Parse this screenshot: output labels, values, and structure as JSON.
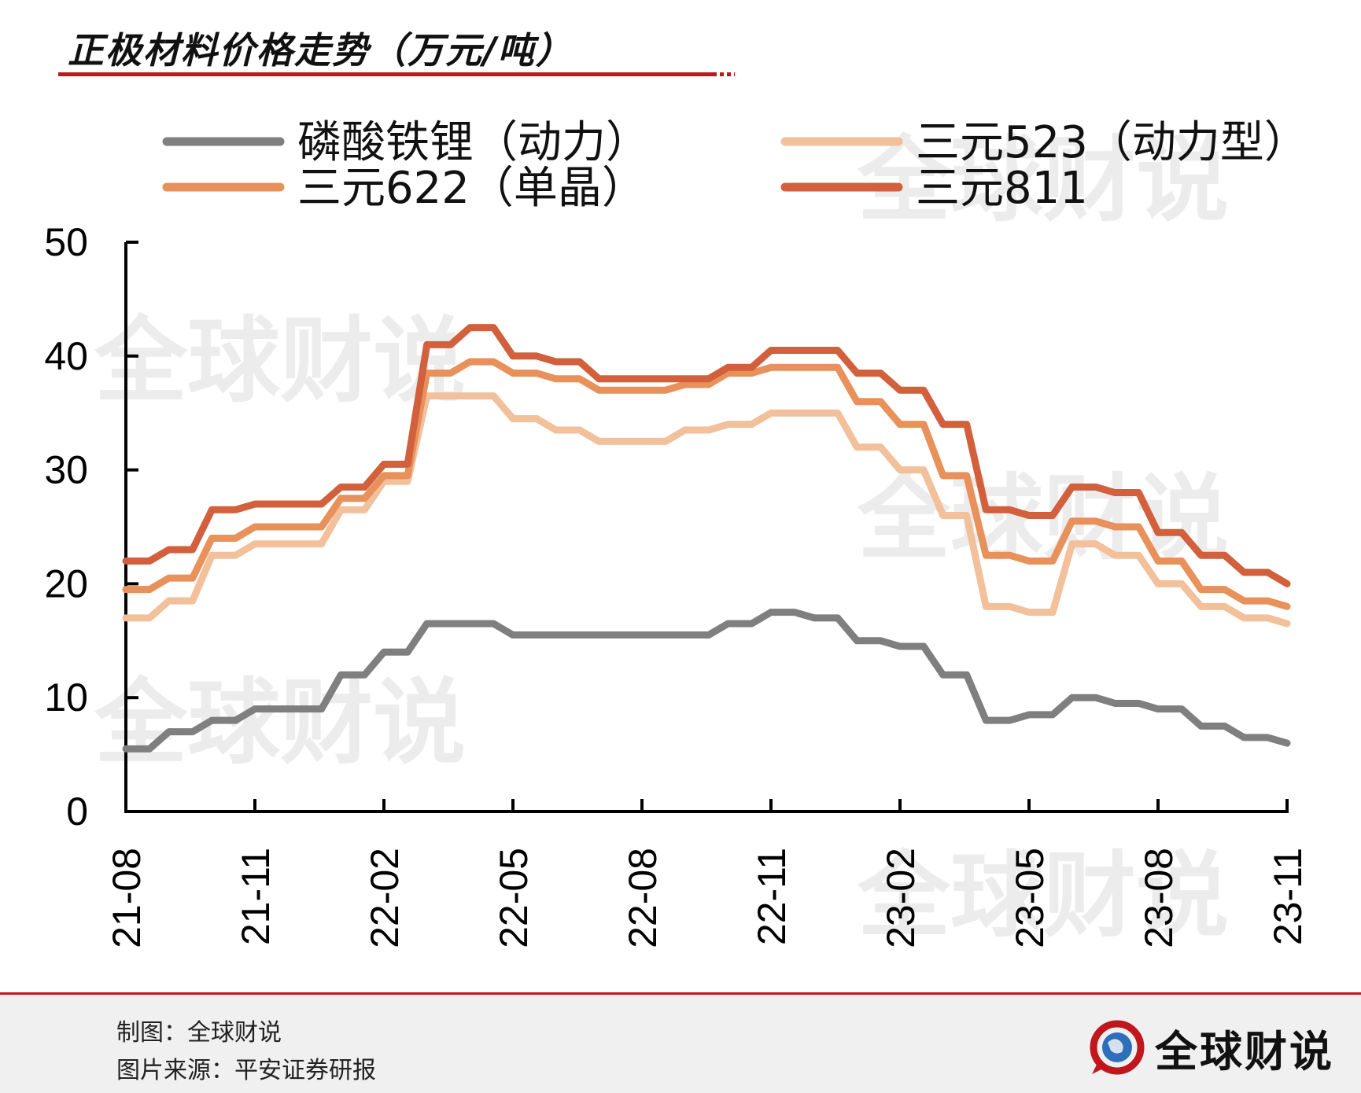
{
  "title": "正极材料价格走势（万元/吨）",
  "footer": {
    "maker": "制图：全球财说",
    "source": "图片来源：平安证券研报",
    "brand": "全球财说"
  },
  "watermark": "全球财说",
  "chart_data": {
    "type": "line",
    "title": "正极材料价格走势（万元/吨）",
    "xlabel": "",
    "ylabel": "",
    "ylim": [
      0,
      50
    ],
    "yticks": [
      0,
      10,
      20,
      30,
      40,
      50
    ],
    "xlim": [
      "21-08",
      "23-11"
    ],
    "xticks": [
      "21-08",
      "21-11",
      "22-02",
      "22-05",
      "22-08",
      "22-11",
      "23-02",
      "23-05",
      "23-08",
      "23-11"
    ],
    "grid": false,
    "legend": "top",
    "x": [
      "21-08",
      "21-09",
      "21-10",
      "21-11",
      "21-12",
      "22-01",
      "22-02",
      "22-03",
      "22-04",
      "22-05",
      "22-06",
      "22-07",
      "22-08",
      "22-09",
      "22-10",
      "22-11",
      "22-12",
      "23-01",
      "23-02",
      "23-03",
      "23-04",
      "23-05",
      "23-06",
      "23-07",
      "23-08",
      "23-09",
      "23-10",
      "23-11"
    ],
    "series": [
      {
        "name": "磷酸铁锂（动力）",
        "color": "#7f7f7f",
        "values": [
          5.5,
          7.0,
          8.0,
          9.0,
          9.0,
          12.0,
          14.0,
          16.5,
          16.5,
          15.5,
          15.5,
          15.5,
          15.5,
          15.5,
          16.5,
          17.5,
          17.0,
          15.0,
          14.5,
          12.0,
          8.0,
          8.5,
          10.0,
          9.5,
          9.0,
          7.5,
          6.5,
          6.0
        ]
      },
      {
        "name": "三元523（动力型）",
        "color": "#f2c09a",
        "values": [
          17.0,
          18.5,
          22.5,
          23.5,
          23.5,
          26.5,
          29.0,
          36.5,
          36.5,
          34.5,
          33.5,
          32.5,
          32.5,
          33.5,
          34.0,
          35.0,
          35.0,
          32.0,
          30.0,
          26.0,
          18.0,
          17.5,
          23.5,
          22.5,
          20.0,
          18.0,
          17.0,
          16.5
        ]
      },
      {
        "name": "三元622（单晶）",
        "color": "#e8915a",
        "values": [
          19.5,
          20.5,
          24.0,
          25.0,
          25.0,
          27.5,
          29.5,
          38.5,
          39.5,
          38.5,
          38.0,
          37.0,
          37.0,
          37.5,
          38.5,
          39.0,
          39.0,
          36.0,
          34.0,
          29.5,
          22.5,
          22.0,
          25.5,
          25.0,
          22.0,
          19.5,
          18.5,
          18.0
        ]
      },
      {
        "name": "三元811",
        "color": "#d2603d",
        "values": [
          22.0,
          23.0,
          26.5,
          27.0,
          27.0,
          28.5,
          30.5,
          41.0,
          42.5,
          40.0,
          39.5,
          38.0,
          38.0,
          38.0,
          39.0,
          40.5,
          40.5,
          38.5,
          37.0,
          34.0,
          26.5,
          26.0,
          28.5,
          28.0,
          24.5,
          22.5,
          21.0,
          20.0
        ]
      }
    ]
  }
}
